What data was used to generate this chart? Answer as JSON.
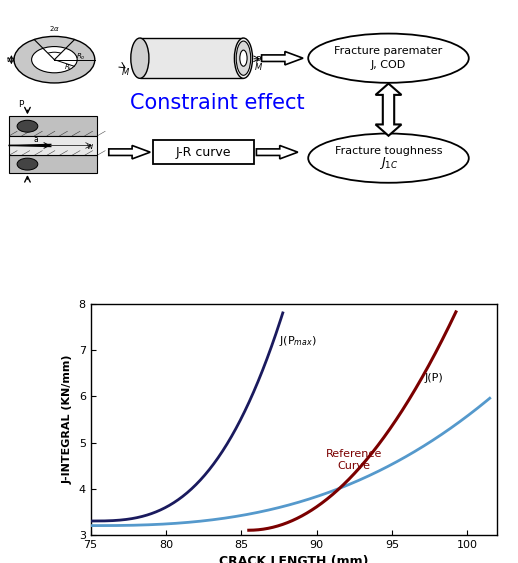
{
  "constraint_text": "Constraint effect",
  "constraint_color": "#0000FF",
  "fracture_param_text1": "Fracture paremater",
  "fracture_param_text2": "J, COD",
  "fracture_tough_text1": "Fracture toughness",
  "jr_curve_text": "J-R curve",
  "xlabel": "CRACK LENGTH (mm)",
  "ylabel": "J-INTEGRAL (KN/mm)",
  "xlim": [
    75,
    102
  ],
  "ylim": [
    3,
    8
  ],
  "xticks": [
    75,
    80,
    85,
    90,
    95,
    100
  ],
  "yticks": [
    3,
    4,
    5,
    6,
    7,
    8
  ],
  "curve_jp_color": "#5599CC",
  "curve_jpmax_color": "#1a1a5e",
  "curve_ref_color": "#7B0000",
  "label_jpmax": "J(P$_{max}$)",
  "label_jp": "J(P)",
  "label_ref": "Reference\nCurve",
  "background_color": "#ffffff"
}
